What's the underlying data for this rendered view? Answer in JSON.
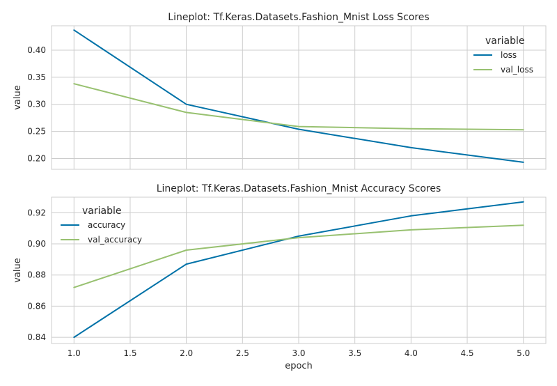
{
  "colors": {
    "series_blue": "#0072a8",
    "series_green": "#98c170",
    "grid": "#cccccc",
    "text": "#262626"
  },
  "chart_data": [
    {
      "type": "line",
      "title": "Lineplot: Tf.Keras.Datasets.Fashion_Mnist Loss Scores",
      "xlabel": "",
      "ylabel": "value",
      "x": [
        1,
        2,
        3,
        4,
        5
      ],
      "xlim": [
        0.8,
        5.2
      ],
      "ylim": [
        0.18,
        0.445
      ],
      "xticks": [
        1.0,
        1.5,
        2.0,
        2.5,
        3.0,
        3.5,
        4.0,
        4.5,
        5.0
      ],
      "xtick_labels": [],
      "yticks": [
        0.2,
        0.25,
        0.3,
        0.35,
        0.4
      ],
      "ytick_labels": [
        "0.20",
        "0.25",
        "0.30",
        "0.35",
        "0.40"
      ],
      "legend_title": "variable",
      "legend_position": "top-right",
      "grid": true,
      "series": [
        {
          "name": "loss",
          "color": "#0072a8",
          "values": [
            0.437,
            0.3,
            0.254,
            0.22,
            0.193
          ]
        },
        {
          "name": "val_loss",
          "color": "#98c170",
          "values": [
            0.338,
            0.285,
            0.259,
            0.255,
            0.253
          ]
        }
      ]
    },
    {
      "type": "line",
      "title": "Lineplot: Tf.Keras.Datasets.Fashion_Mnist Accuracy Scores",
      "xlabel": "epoch",
      "ylabel": "value",
      "x": [
        1,
        2,
        3,
        4,
        5
      ],
      "xlim": [
        0.8,
        5.2
      ],
      "ylim": [
        0.836,
        0.93
      ],
      "xticks": [
        1.0,
        1.5,
        2.0,
        2.5,
        3.0,
        3.5,
        4.0,
        4.5,
        5.0
      ],
      "xtick_labels": [
        "1.0",
        "1.5",
        "2.0",
        "2.5",
        "3.0",
        "3.5",
        "4.0",
        "4.5",
        "5.0"
      ],
      "yticks": [
        0.84,
        0.86,
        0.88,
        0.9,
        0.92
      ],
      "ytick_labels": [
        "0.84",
        "0.86",
        "0.88",
        "0.90",
        "0.92"
      ],
      "legend_title": "variable",
      "legend_position": "top-left",
      "grid": true,
      "series": [
        {
          "name": "accuracy",
          "color": "#0072a8",
          "values": [
            0.84,
            0.887,
            0.905,
            0.918,
            0.927
          ]
        },
        {
          "name": "val_accuracy",
          "color": "#98c170",
          "values": [
            0.872,
            0.896,
            0.904,
            0.909,
            0.912
          ]
        }
      ]
    }
  ]
}
